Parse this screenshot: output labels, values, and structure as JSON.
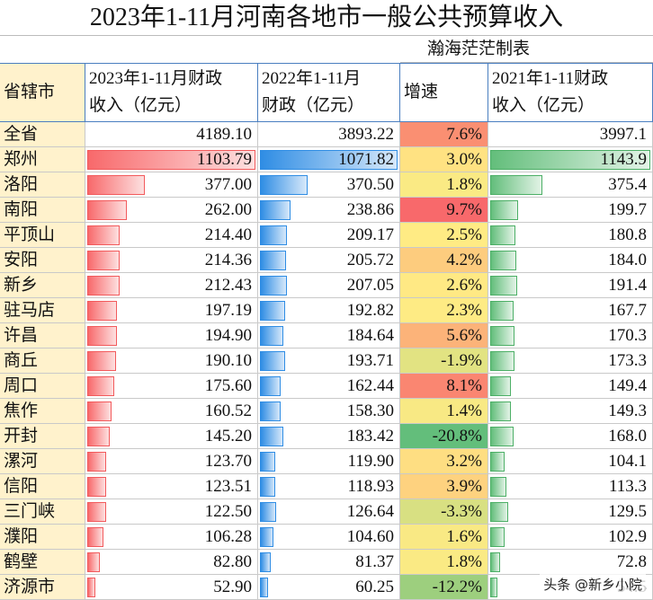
{
  "title": "2023年1-11月河南各地市一般公共预算收入",
  "note": "瀚海茫茫制表",
  "watermark": "头条 @新乡小院",
  "table": {
    "header": [
      [
        "省辖市"
      ],
      [
        "2023年1-11月财政",
        "收入（亿元）"
      ],
      [
        "2022年1-11月",
        "财政（亿元）"
      ],
      [
        "增速"
      ],
      [
        "2021年1-11财政",
        "收入（亿元）"
      ]
    ],
    "rows": [
      [
        "全省",
        "4189.10",
        "3893.22",
        "7.6%",
        "3997.1"
      ],
      [
        "郑州",
        "1103.79",
        "1071.82",
        "3.0%",
        "1143.9"
      ],
      [
        "洛阳",
        "377.00",
        "370.50",
        "1.8%",
        "375.4"
      ],
      [
        "南阳",
        "262.00",
        "238.86",
        "9.7%",
        "199.7"
      ],
      [
        "平顶山",
        "214.40",
        "209.17",
        "2.5%",
        "180.8"
      ],
      [
        "安阳",
        "214.36",
        "205.72",
        "4.2%",
        "184.0"
      ],
      [
        "新乡",
        "212.43",
        "207.05",
        "2.6%",
        "191.4"
      ],
      [
        "驻马店",
        "197.19",
        "192.82",
        "2.3%",
        "167.7"
      ],
      [
        "许昌",
        "194.90",
        "184.64",
        "5.6%",
        "170.3"
      ],
      [
        "商丘",
        "190.10",
        "193.71",
        "-1.9%",
        "173.3"
      ],
      [
        "周口",
        "175.60",
        "162.44",
        "8.1%",
        "149.4"
      ],
      [
        "焦作",
        "160.52",
        "158.30",
        "1.4%",
        "149.3"
      ],
      [
        "开封",
        "145.20",
        "183.42",
        "-20.8%",
        "168.0"
      ],
      [
        "漯河",
        "123.70",
        "119.90",
        "3.2%",
        "104.1"
      ],
      [
        "信阳",
        "123.51",
        "118.93",
        "3.9%",
        "113.3"
      ],
      [
        "三门峡",
        "122.50",
        "126.64",
        "-3.3%",
        "129.5"
      ],
      [
        "濮阳",
        "106.28",
        "104.60",
        "1.6%",
        "102.9"
      ],
      [
        "鹤壁",
        "82.80",
        "81.37",
        "1.8%",
        "72.8"
      ],
      [
        "济源市",
        "52.90",
        "60.25",
        "-12.2%",
        "54.5"
      ]
    ]
  }
}
